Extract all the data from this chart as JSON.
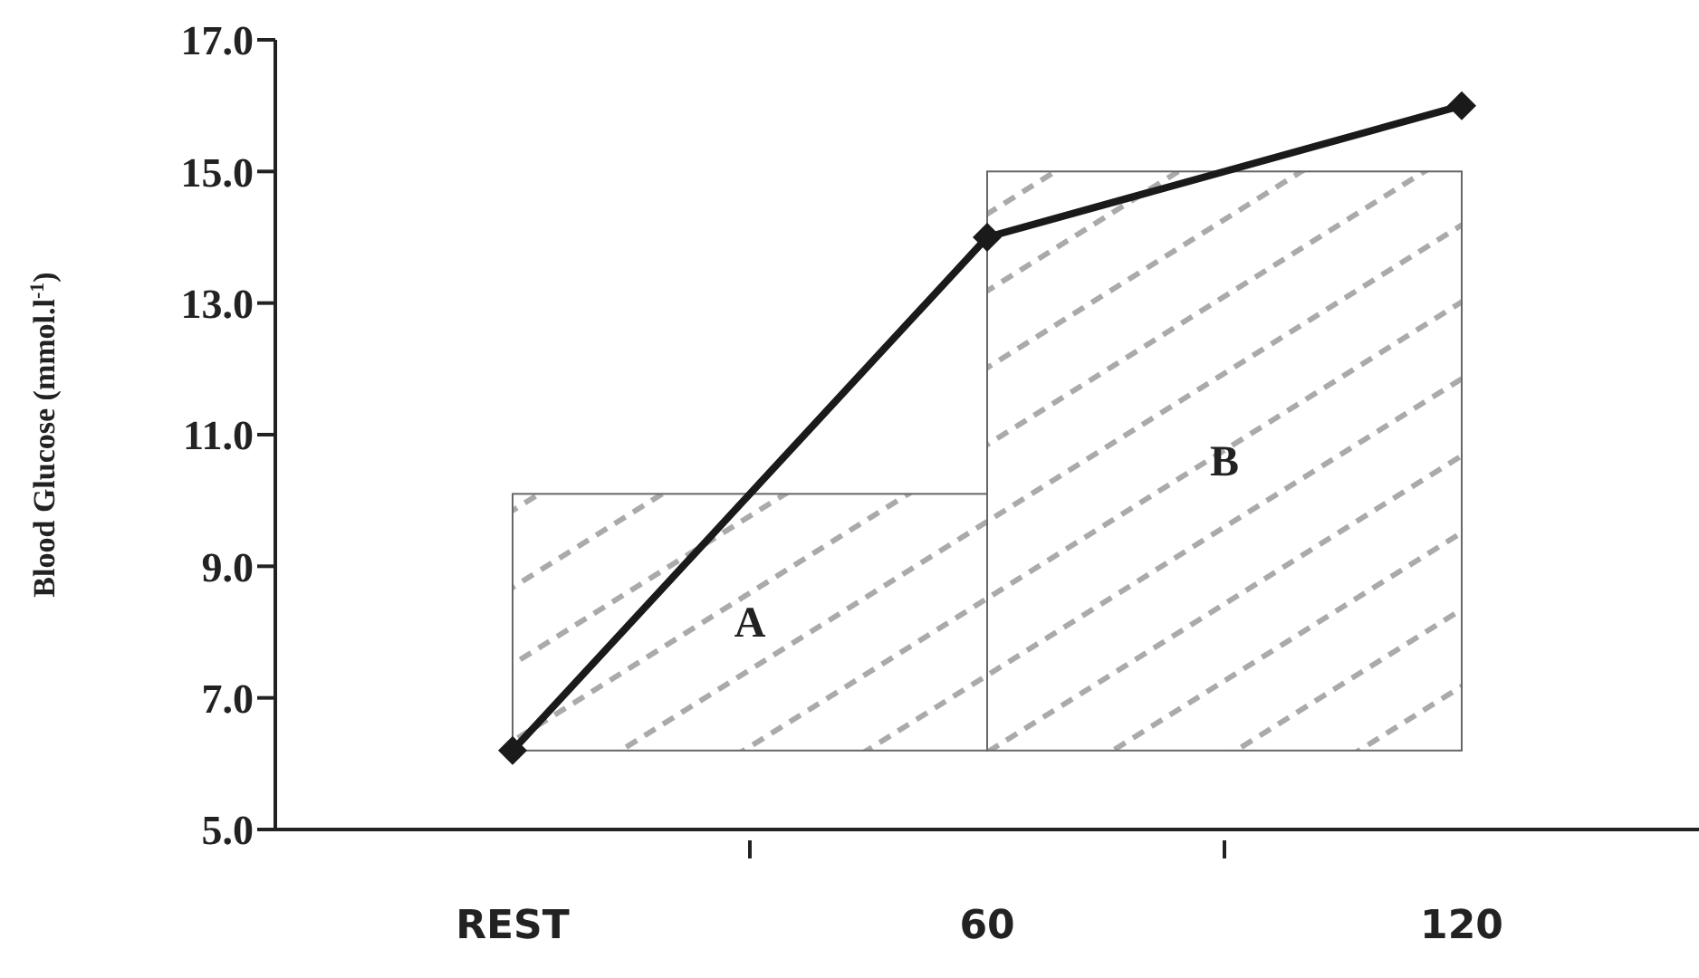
{
  "chart_data": {
    "type": "line",
    "ylabel": "Blood Glucose (mmol.l$^{-1}$)",
    "categories": [
      "REST",
      "60",
      "120"
    ],
    "series": [
      {
        "color": "#1a1a1a",
        "values": [
          6.2,
          14.0,
          16.0
        ]
      }
    ],
    "ylim": [
      5,
      17
    ],
    "yticks": [
      {
        "value": 5,
        "label": "5.0"
      },
      {
        "value": 7,
        "label": "7.0"
      },
      {
        "value": 9,
        "label": "9.0"
      },
      {
        "value": 11,
        "label": "11.0"
      },
      {
        "value": 13,
        "label": "13.0"
      },
      {
        "value": 15,
        "label": "15.0"
      },
      {
        "value": 17,
        "label": "17.0"
      }
    ],
    "annotations": [
      "A",
      "B"
    ],
    "marker": "diamond",
    "line_style": "solid"
  }
}
